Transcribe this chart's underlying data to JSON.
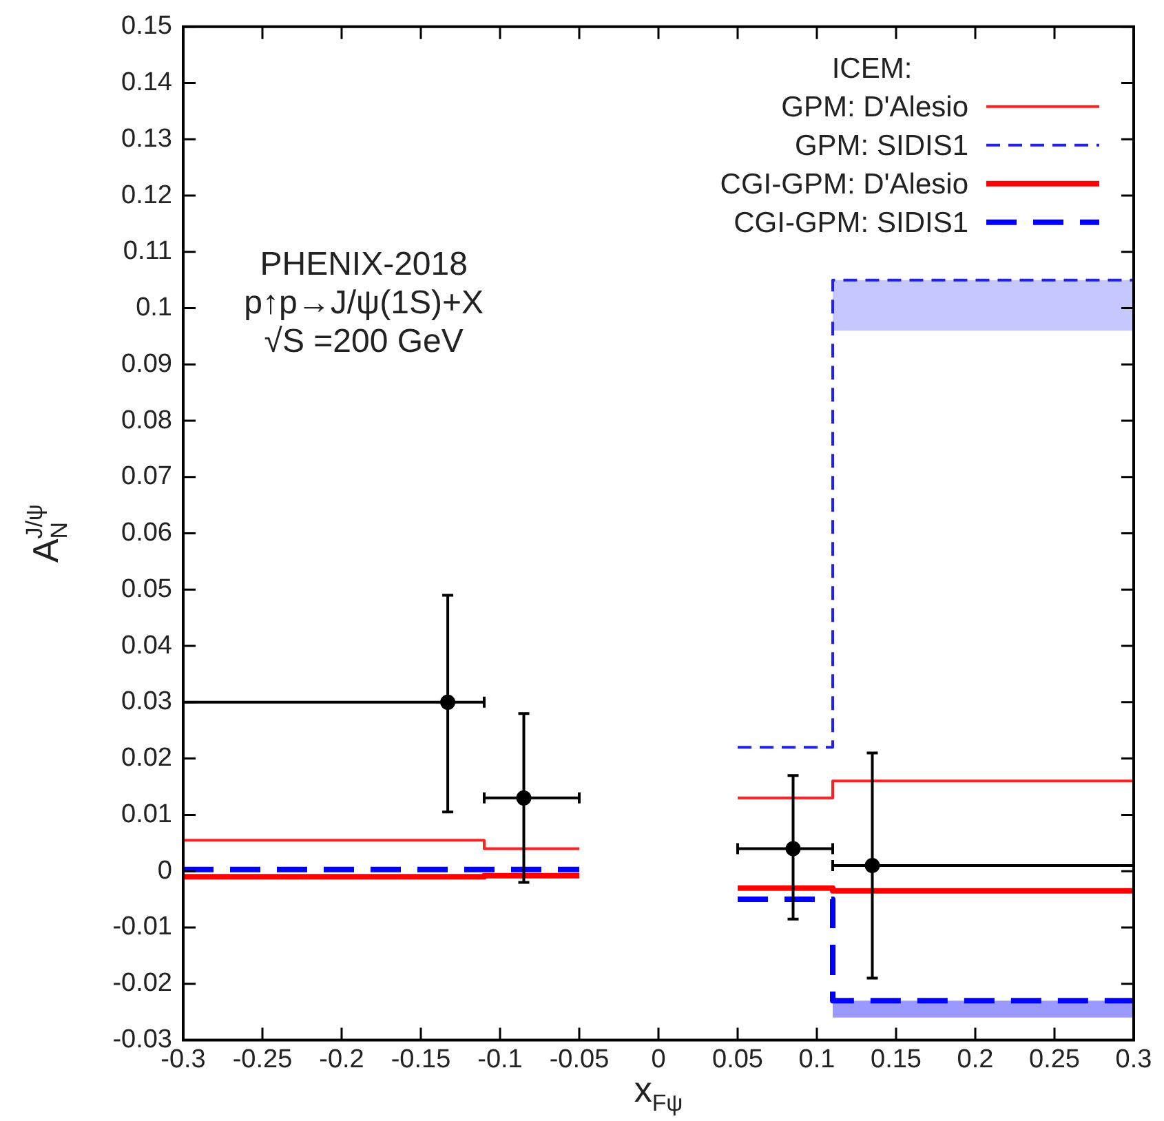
{
  "chart_data": {
    "type": "step",
    "xlabel": "x$_{Fψ}$",
    "ylabel": "A$_{N}$$^{J/ψ}$",
    "legend_title": "ICEM:",
    "legend": "top right",
    "grid": false,
    "annotations": [
      "PHENIX-2018",
      "p↑p→J/ψ(1S)+X",
      "√S =200 GeV"
    ],
    "xlim": [
      -0.3,
      0.3
    ],
    "xticks": [
      -0.3,
      -0.25,
      -0.2,
      -0.15,
      -0.1,
      -0.05,
      0,
      0.05,
      0.1,
      0.15,
      0.2,
      0.25,
      0.3
    ],
    "ylim": [
      -0.03,
      0.15
    ],
    "yticks": [
      -0.03,
      -0.02,
      -0.01,
      0,
      0.01,
      0.02,
      0.03,
      0.04,
      0.05,
      0.06,
      0.07,
      0.08,
      0.09,
      0.1,
      0.11,
      0.12,
      0.13,
      0.14,
      0.15
    ],
    "series": [
      {
        "name": "GPM: D'Alesio",
        "color": "#ff2020",
        "line_style": "solid",
        "x": [
          -0.3,
          -0.11,
          -0.05,
          0,
          0.05,
          0.11,
          0.3
        ],
        "values": [
          0.0055,
          0.004,
          0.004,
          null,
          0.013,
          0.016,
          0.016
        ]
      },
      {
        "name": "GPM: SIDIS1",
        "color": "#2020ff",
        "line_style": "dashed",
        "x": [
          0.05,
          0.11,
          0.3
        ],
        "values": [
          0.022,
          0.105,
          0.105
        ],
        "lower": [
          null,
          0.096,
          0.096
        ],
        "upper": [
          null,
          0.105,
          0.105
        ]
      },
      {
        "name": "CGI-GPM: D'Alesio",
        "color": "#ff0000",
        "line_style": "solid",
        "x": [
          -0.3,
          -0.11,
          -0.05,
          0,
          0.05,
          0.11,
          0.3
        ],
        "values": [
          -0.001,
          -0.0008,
          -0.0008,
          null,
          -0.003,
          -0.0035,
          -0.0035
        ]
      },
      {
        "name": "CGI-GPM: SIDIS1",
        "color": "#0000ff",
        "line_style": "dashed",
        "x": [
          -0.3,
          -0.11,
          -0.05,
          0,
          0.05,
          0.11,
          0.3
        ],
        "values": [
          0.0003,
          0.0003,
          0.0003,
          null,
          -0.005,
          -0.023,
          -0.023
        ],
        "lower": [
          null,
          null,
          null,
          null,
          null,
          -0.026,
          -0.026
        ],
        "upper": [
          null,
          null,
          null,
          null,
          null,
          -0.023,
          -0.023
        ]
      },
      {
        "type": "scatter",
        "color": "#000000",
        "marker": "circle",
        "x": [
          -0.133,
          -0.085,
          0.085,
          0.135
        ],
        "values": [
          0.03,
          0.013,
          0.004,
          0.001
        ],
        "errors": [
          [
            0.0105,
            0.049
          ],
          [
            -0.002,
            0.028
          ],
          [
            -0.0085,
            0.017
          ],
          [
            -0.019,
            0.021
          ]
        ],
        "xerrors": [
          [
            -0.3,
            -0.11
          ],
          [
            -0.11,
            -0.05
          ],
          [
            0.05,
            0.11
          ],
          [
            0.11,
            0.3
          ]
        ]
      }
    ]
  }
}
